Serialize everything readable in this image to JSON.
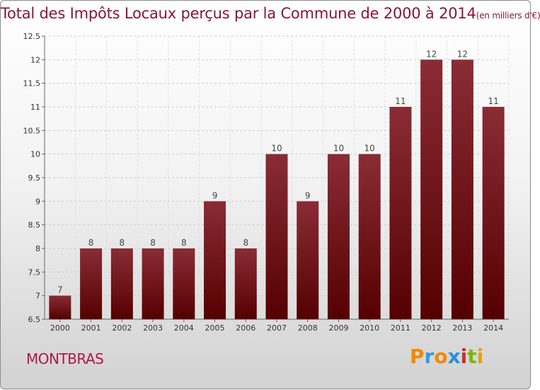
{
  "title": "Total des Impôts Locaux perçus par la Commune de 2000 à 2014",
  "unit_note": "(en milliers d'€)",
  "commune": "MONTBRAS",
  "logo": "Proxiti",
  "colors": {
    "bar_top": "#8a2c35",
    "bar_bottom": "#550000",
    "title": "#8a1535",
    "commune": "#b0174a"
  },
  "chart_data": {
    "type": "bar",
    "title": "Total des Impôts Locaux perçus par la Commune de 2000 à 2014 (en milliers d'€)",
    "categories": [
      "2000",
      "2001",
      "2002",
      "2003",
      "2004",
      "2005",
      "2006",
      "2007",
      "2008",
      "2009",
      "2010",
      "2011",
      "2012",
      "2013",
      "2014"
    ],
    "values": [
      7,
      8,
      8,
      8,
      8,
      9,
      8,
      10,
      9,
      10,
      10,
      11,
      12,
      12,
      11
    ],
    "value_labels": [
      "7",
      "8",
      "8",
      "8",
      "8",
      "9",
      "8",
      "10",
      "9",
      "10",
      "10",
      "11",
      "12",
      "12",
      "11"
    ],
    "yticks": [
      "6.5",
      "7",
      "7.5",
      "8",
      "8.5",
      "9",
      "9.5",
      "10",
      "10.5",
      "11",
      "11.5",
      "12",
      "12.5"
    ],
    "ylim": [
      6.5,
      12.5
    ],
    "xlabel": "",
    "ylabel": "",
    "grid": true
  }
}
